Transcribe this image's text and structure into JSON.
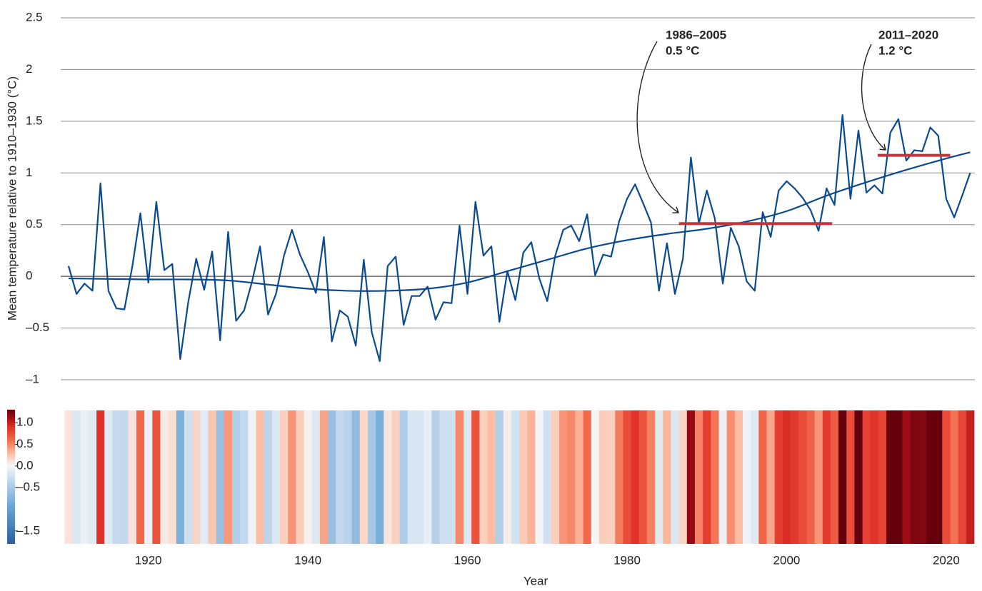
{
  "chart_data": {
    "type": "line",
    "y_label": "Mean temperature relative to 1910–1930 (°C)",
    "x_label": "Year",
    "x": [
      1910,
      1911,
      1912,
      1913,
      1914,
      1915,
      1916,
      1917,
      1918,
      1919,
      1920,
      1921,
      1922,
      1923,
      1924,
      1925,
      1926,
      1927,
      1928,
      1929,
      1930,
      1931,
      1932,
      1933,
      1934,
      1935,
      1936,
      1937,
      1938,
      1939,
      1940,
      1941,
      1942,
      1943,
      1944,
      1945,
      1946,
      1947,
      1948,
      1949,
      1950,
      1951,
      1952,
      1953,
      1954,
      1955,
      1956,
      1957,
      1958,
      1959,
      1960,
      1961,
      1962,
      1963,
      1964,
      1965,
      1966,
      1967,
      1968,
      1969,
      1970,
      1971,
      1972,
      1973,
      1974,
      1975,
      1976,
      1977,
      1978,
      1979,
      1980,
      1981,
      1982,
      1983,
      1984,
      1985,
      1986,
      1987,
      1988,
      1989,
      1990,
      1991,
      1992,
      1993,
      1994,
      1995,
      1996,
      1997,
      1998,
      1999,
      2000,
      2001,
      2002,
      2003,
      2004,
      2005,
      2006,
      2007,
      2008,
      2009,
      2010,
      2011,
      2012,
      2013,
      2014,
      2015,
      2016,
      2017,
      2018,
      2019,
      2020,
      2021,
      2022,
      2023
    ],
    "xlim": [
      1909.5,
      2023.5
    ],
    "xticks": [
      1920,
      1940,
      1960,
      1980,
      2000,
      2020
    ],
    "ylim": [
      -1,
      2.5
    ],
    "yticks": [
      {
        "value": -1,
        "label": "–1"
      },
      {
        "value": -0.5,
        "label": "–0.5"
      },
      0,
      0.5,
      1,
      1.5,
      2,
      2.5
    ],
    "grid": true,
    "series": [
      {
        "color": "#0b4a8e",
        "values": [
          0.1,
          -0.17,
          -0.07,
          -0.14,
          0.9,
          -0.14,
          -0.31,
          -0.32,
          0.1,
          0.61,
          -0.06,
          0.72,
          0.06,
          0.12,
          -0.8,
          -0.25,
          0.17,
          -0.13,
          0.24,
          -0.62,
          0.43,
          -0.43,
          -0.33,
          -0.05,
          0.29,
          -0.37,
          -0.17,
          0.2,
          0.45,
          0.21,
          0.04,
          -0.16,
          0.38,
          -0.63,
          -0.33,
          -0.39,
          -0.67,
          0.16,
          -0.54,
          -0.82,
          0.1,
          0.19,
          -0.47,
          -0.19,
          -0.19,
          -0.1,
          -0.42,
          -0.25,
          -0.26,
          0.49,
          -0.17,
          0.72,
          0.2,
          0.29,
          -0.44,
          0.05,
          -0.23,
          0.23,
          0.33,
          -0.02,
          -0.24,
          0.2,
          0.45,
          0.49,
          0.34,
          0.6,
          0.01,
          0.21,
          0.19,
          0.53,
          0.75,
          0.89,
          0.71,
          0.52,
          -0.14,
          0.32,
          -0.17,
          0.17,
          1.15,
          0.51,
          0.83,
          0.56,
          -0.07,
          0.47,
          0.29,
          -0.05,
          -0.14,
          0.62,
          0.38,
          0.83,
          0.92,
          0.85,
          0.76,
          0.64,
          0.44,
          0.85,
          0.69,
          1.56,
          0.75,
          1.41,
          0.81,
          0.88,
          0.8,
          1.39,
          1.52,
          1.12,
          1.22,
          1.21,
          1.44,
          1.36,
          0.75,
          0.57,
          0.78,
          1.0
        ]
      },
      {
        "color": "#0b4a8e",
        "smooth": true,
        "x": [
          1910,
          1915,
          1920,
          1925,
          1930,
          1935,
          1940,
          1945,
          1950,
          1955,
          1960,
          1965,
          1970,
          1975,
          1980,
          1985,
          1990,
          1995,
          2000,
          2005,
          2010,
          2015,
          2020,
          2023
        ],
        "values": [
          -0.02,
          -0.025,
          -0.03,
          -0.03,
          -0.04,
          -0.08,
          -0.12,
          -0.14,
          -0.14,
          -0.12,
          -0.06,
          0.05,
          0.16,
          0.27,
          0.35,
          0.41,
          0.46,
          0.53,
          0.63,
          0.78,
          0.91,
          1.03,
          1.14,
          1.2
        ]
      }
    ],
    "annotations": [
      {
        "period": "1986–2005",
        "label": "0.5 °C",
        "value": 0.51,
        "start": 1986.5,
        "end": 2005.7,
        "color": "#c0343c"
      },
      {
        "period": "2011–2020",
        "label": "1.2 °C",
        "value": 1.17,
        "start": 2011.4,
        "end": 2020.5,
        "color": "#c0343c"
      }
    ],
    "stripes": {
      "clim": [
        -1.8,
        1.3
      ],
      "ticks": [
        {
          "value": 1,
          "label": "1.0"
        },
        0.5,
        {
          "value": 0,
          "label": "0.0"
        },
        {
          "value": -0.5,
          "label": "–0.5"
        },
        {
          "value": -1.5,
          "label": "–1.5"
        }
      ],
      "colorscale": [
        [
          -1.8,
          "#2c5d9f"
        ],
        [
          -0.9,
          "#6fa8d6"
        ],
        [
          -0.3,
          "#c6dbef"
        ],
        [
          0,
          "#f7f7f7"
        ],
        [
          0.3,
          "#fcbba1"
        ],
        [
          0.6,
          "#f26a4a"
        ],
        [
          0.9,
          "#e0302a"
        ],
        [
          1.1,
          "#a50f15"
        ],
        [
          1.3,
          "#67000d"
        ]
      ]
    }
  }
}
